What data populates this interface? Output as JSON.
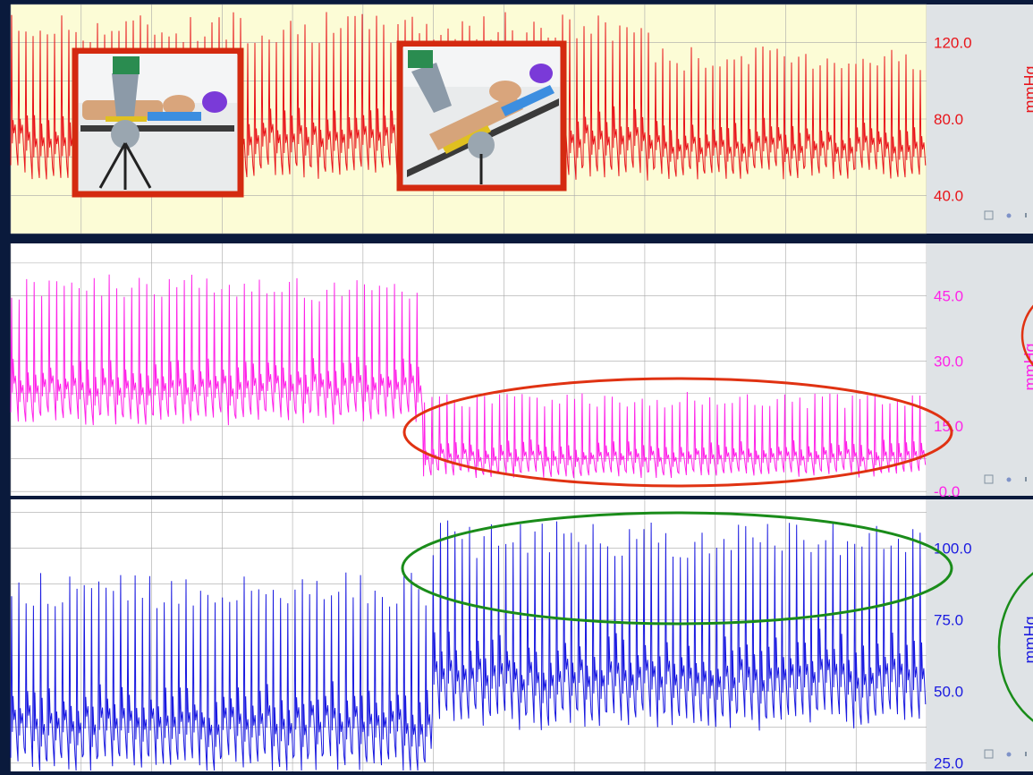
{
  "colors": {
    "border": "#0a1a3c",
    "panel1_bg": "#fcfcd6",
    "panel_bg": "#ffffff",
    "side_bg": "#dfe3e6",
    "grid": "#a8a8a8",
    "trace1": "#e8141a",
    "trace2": "#ff22e8",
    "trace3": "#1a1ae0",
    "ellipse_red": "#e03212",
    "ellipse_green": "#1a8c1a",
    "photo_frame": "#d42a10"
  },
  "chart_data": [
    {
      "type": "line",
      "series": [
        {
          "values": []
        }
      ],
      "ylim": [
        20,
        140
      ],
      "yticks": [
        "120.0",
        "80.0",
        "40.0"
      ],
      "ytick_values": [
        120,
        80,
        40
      ],
      "ylabel": "mmHg",
      "segments": [
        {
          "from": 0,
          "to": 0.7,
          "systolic": 128,
          "diastolic": 52
        },
        {
          "from": 0.7,
          "to": 1.0,
          "systolic": 112,
          "diastolic": 52
        }
      ],
      "grid": true,
      "color": "#e8141a"
    },
    {
      "type": "line",
      "series": [
        {
          "values": []
        }
      ],
      "ylim": [
        -1,
        57
      ],
      "yticks": [
        "45.0",
        "30.0",
        "15.0",
        "-0.0"
      ],
      "ytick_values": [
        45,
        30,
        15,
        0
      ],
      "ylabel": "mmHg",
      "segments": [
        {
          "from": 0,
          "to": 0.45,
          "systolic": 47,
          "diastolic": 17
        },
        {
          "from": 0.45,
          "to": 1.0,
          "systolic": 21,
          "diastolic": 4
        }
      ],
      "grid": true,
      "color": "#ff22e8"
    },
    {
      "type": "line",
      "series": [
        {
          "values": []
        }
      ],
      "ylim": [
        22,
        117
      ],
      "yticks": [
        "100.0",
        "75.0",
        "50.0",
        "25.0"
      ],
      "ytick_values": [
        100,
        75,
        50,
        25
      ],
      "ylabel": "mmHg",
      "segments": [
        {
          "from": 0,
          "to": 0.46,
          "systolic": 85,
          "diastolic": 25
        },
        {
          "from": 0.46,
          "to": 1.0,
          "systolic": 103,
          "diastolic": 40
        }
      ],
      "grid": true,
      "color": "#1a1ae0"
    }
  ],
  "photos": [
    {
      "name": "cpr-device-photo-flat"
    },
    {
      "name": "cpr-device-photo-tilted"
    }
  ]
}
